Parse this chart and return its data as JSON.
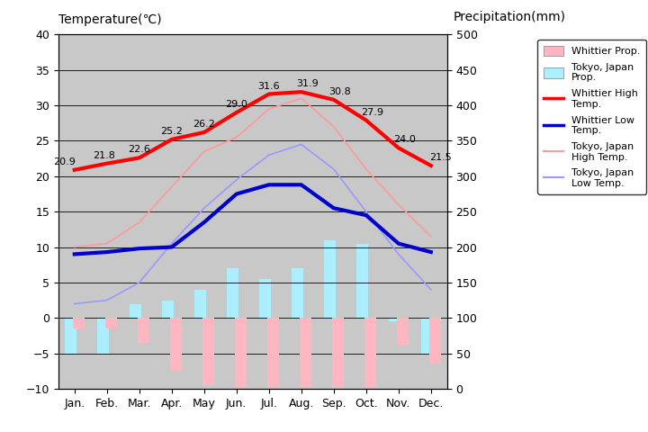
{
  "months": [
    "Jan.",
    "Feb.",
    "Mar.",
    "Apr.",
    "May",
    "Jun.",
    "Jul.",
    "Aug.",
    "Sep.",
    "Oct.",
    "Nov.",
    "Dec."
  ],
  "whittier_high": [
    20.9,
    21.8,
    22.6,
    25.2,
    26.2,
    29.0,
    31.6,
    31.9,
    30.8,
    27.9,
    24.0,
    21.5
  ],
  "whittier_low": [
    9.0,
    9.3,
    9.8,
    10.0,
    13.5,
    17.5,
    18.8,
    18.8,
    15.5,
    14.5,
    10.5,
    9.3
  ],
  "tokyo_high": [
    10.0,
    10.5,
    13.5,
    18.5,
    23.5,
    25.5,
    29.5,
    31.0,
    27.0,
    21.0,
    16.0,
    11.5
  ],
  "tokyo_low": [
    2.0,
    2.5,
    5.0,
    10.5,
    15.5,
    19.5,
    23.0,
    24.5,
    21.0,
    15.0,
    9.0,
    4.0
  ],
  "whittier_precip_temp": [
    -1.5,
    -1.5,
    -3.5,
    -7.5,
    -9.5,
    -9.7,
    -9.7,
    -9.7,
    -9.7,
    -9.7,
    -3.8,
    -6.5
  ],
  "tokyo_precip_temp": [
    -5.0,
    -5.0,
    2.0,
    2.5,
    4.0,
    7.0,
    5.5,
    7.0,
    11.0,
    10.5,
    -0.5,
    -5.0
  ],
  "temp_ylim": [
    -10,
    40
  ],
  "precip_ylim": [
    0,
    500
  ],
  "bg_color": "#c8c8c8",
  "whittier_high_color": "#ff0000",
  "whittier_low_color": "#0000cc",
  "tokyo_high_color": "#ff9999",
  "tokyo_low_color": "#9999ff",
  "whittier_precip_color": "#ffb6c1",
  "tokyo_precip_color": "#aaeeff",
  "title_left": "Temperature(℃)",
  "title_right": "Precipitation(mm)",
  "high_labels": [
    "20.9",
    "21.8",
    "22.6",
    "25.2",
    "26.2",
    "29.0",
    "31.6",
    "31.9",
    "30.8",
    "27.9",
    "24.0",
    "21.5"
  ]
}
